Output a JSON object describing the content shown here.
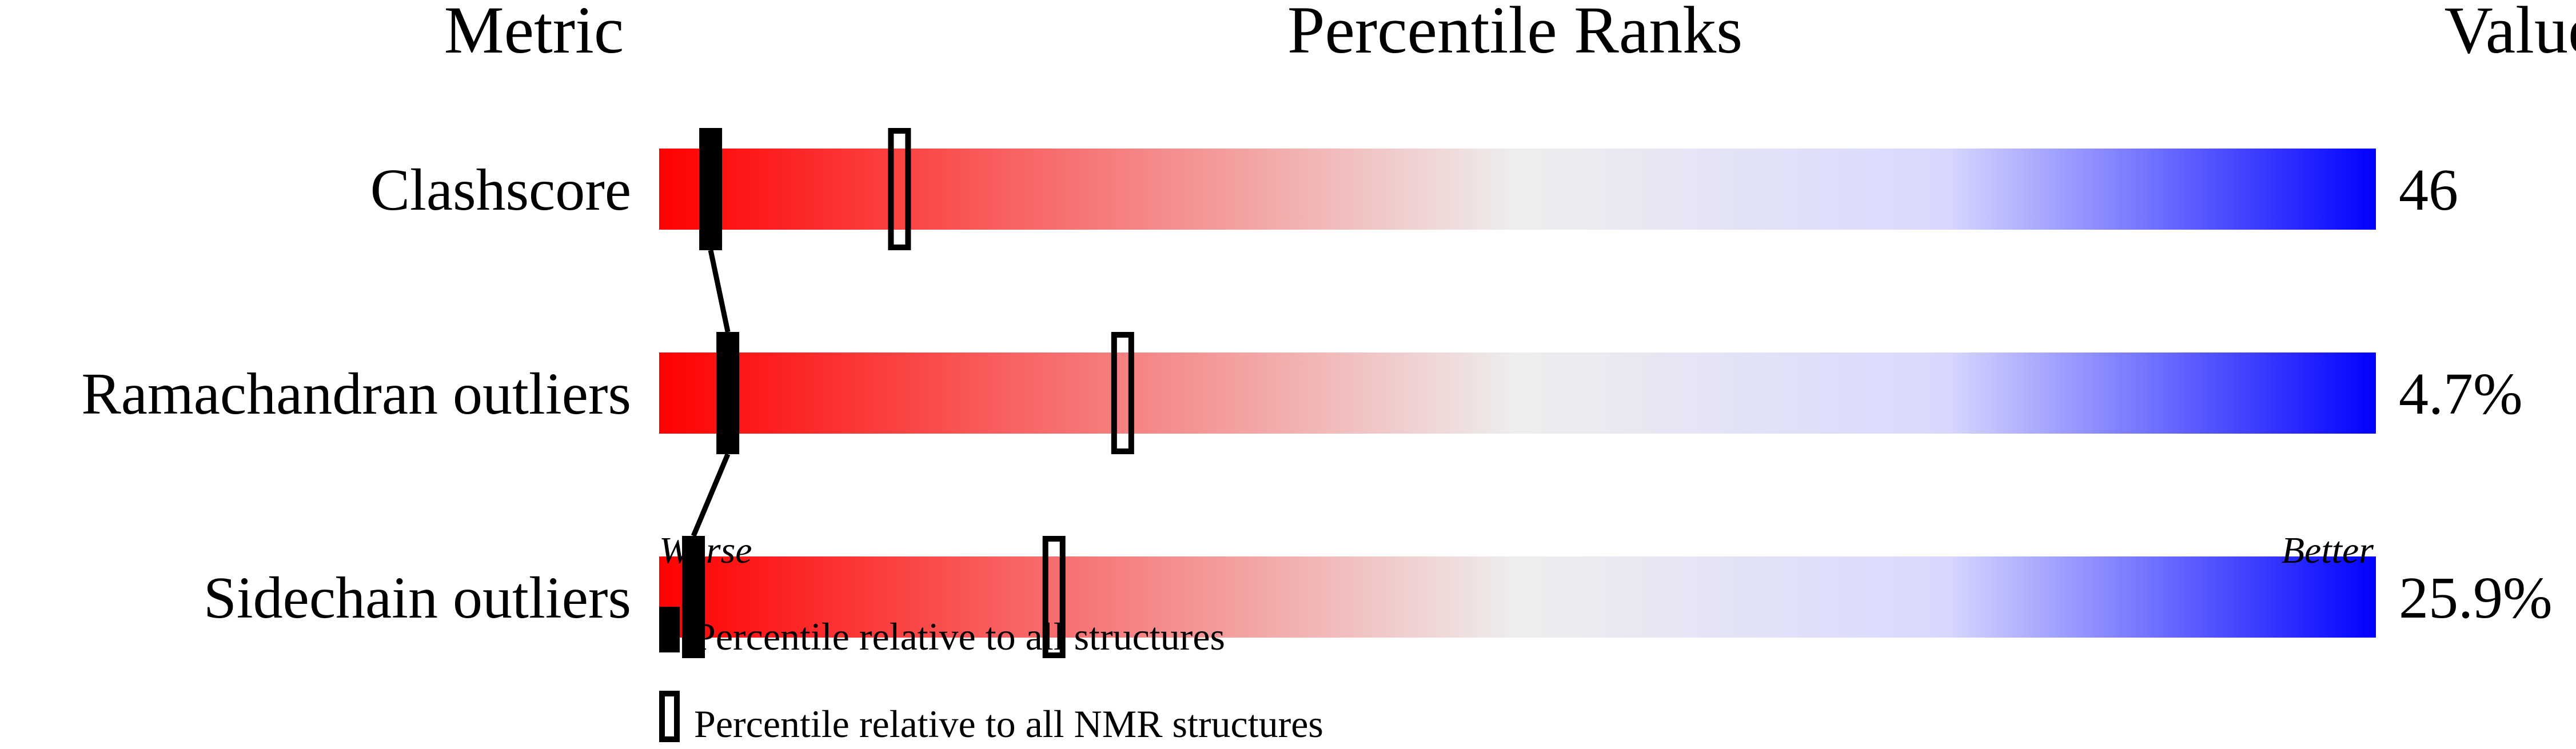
{
  "chart_data": {
    "type": "percentile-bar",
    "headers": {
      "metric": "Metric",
      "ranks": "Percentile Ranks",
      "value": "Value"
    },
    "axis": {
      "left": "Worse",
      "right": "Better",
      "range": [
        0,
        100
      ]
    },
    "gradient_colors": [
      "#ff0000",
      "#eeeeee",
      "#0000ff"
    ],
    "rows": [
      {
        "metric": "Clashscore",
        "value": "46",
        "percentile_all": 3,
        "percentile_nmr": 14
      },
      {
        "metric": "Ramachandran outliers",
        "value": "4.7%",
        "percentile_all": 4,
        "percentile_nmr": 27
      },
      {
        "metric": "Sidechain outliers",
        "value": "25.9%",
        "percentile_all": 2,
        "percentile_nmr": 23
      }
    ],
    "legend": {
      "all": "Percentile relative to all structures",
      "nmr": "Percentile relative to all NMR structures"
    }
  }
}
